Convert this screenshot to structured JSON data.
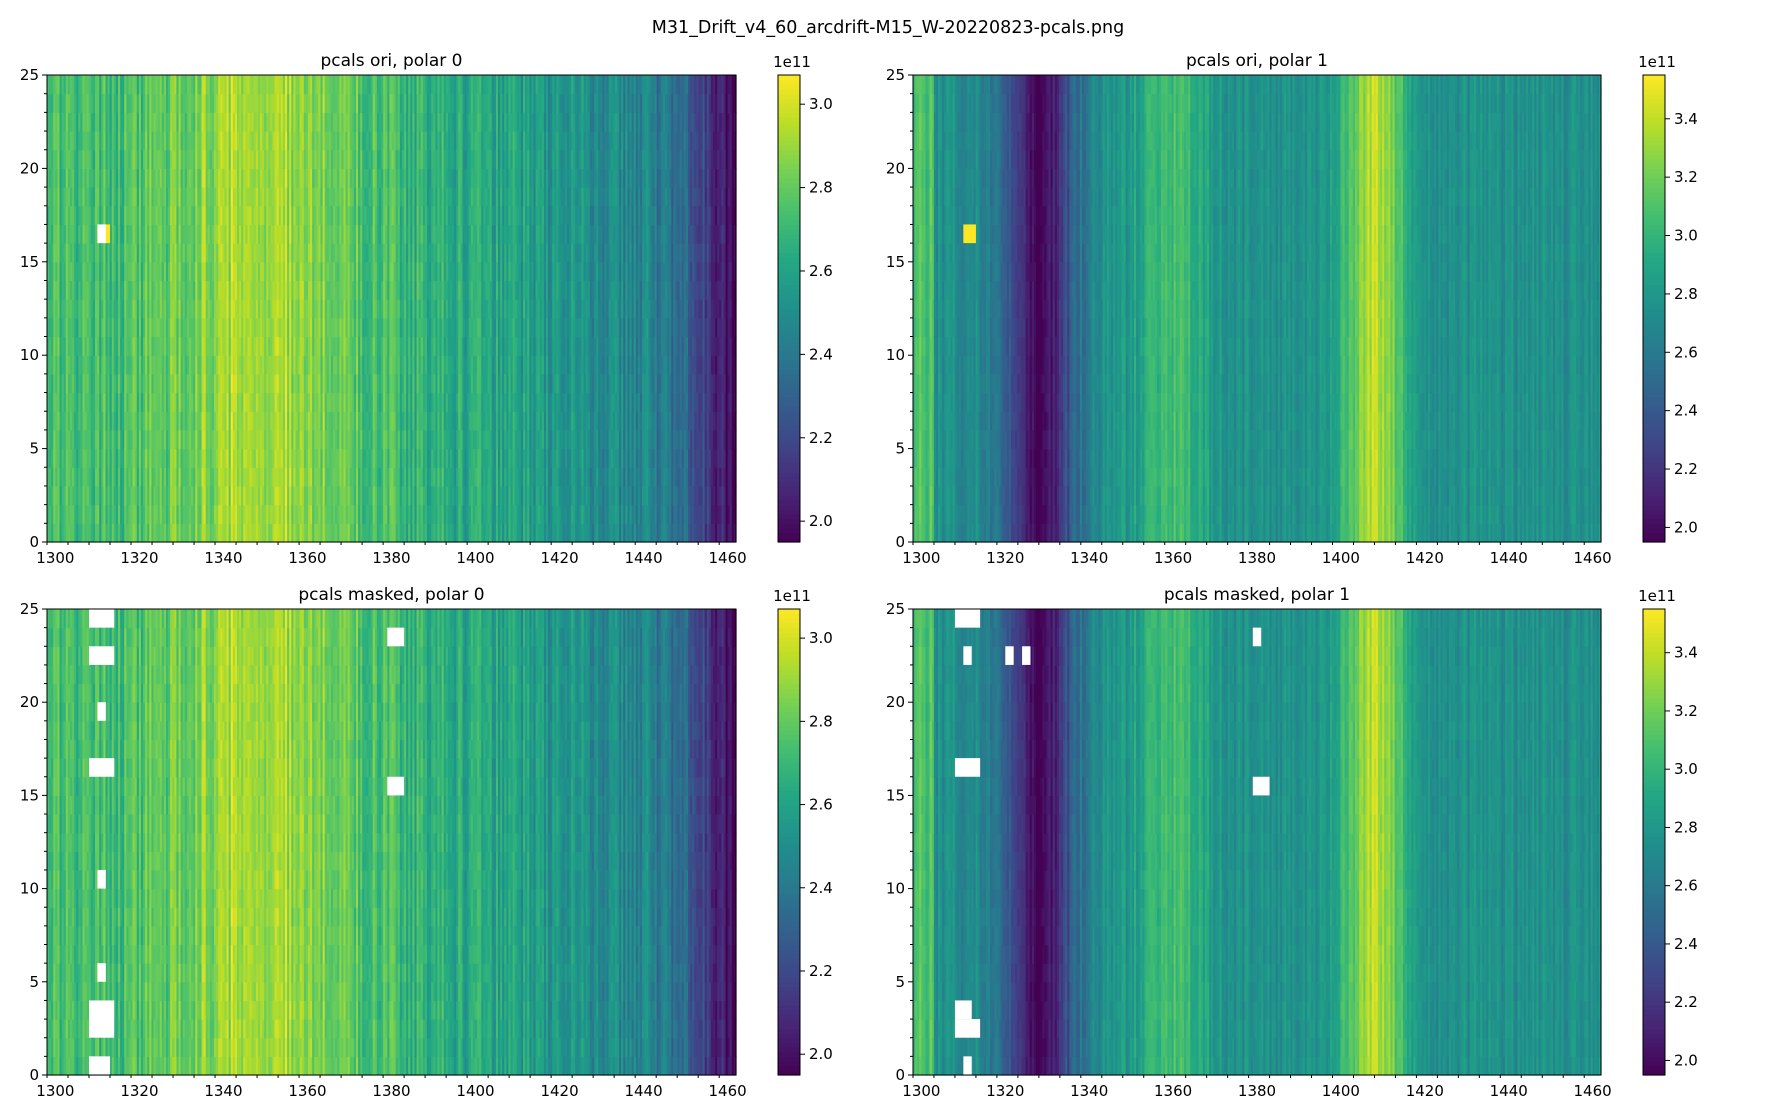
{
  "figure_title": "M31_Drift_v4_60_arcdrift-M15_W-20220823-pcals.png",
  "colors": {
    "mask": "#ffffff",
    "axis": "#000000",
    "colormap": "viridis"
  },
  "chart_data": [
    {
      "type": "heatmap",
      "title": "pcals ori, polar 0",
      "xlim": [
        1298,
        1462
      ],
      "ylim": [
        0,
        25
      ],
      "xticks": [
        "1300",
        "1320",
        "1340",
        "1360",
        "1380",
        "1400",
        "1420",
        "1440",
        "1460"
      ],
      "yticks": [
        "0",
        "5",
        "10",
        "15",
        "20",
        "25"
      ],
      "colorbar": {
        "offset_label": "1e11",
        "range": [
          1.95,
          3.07
        ],
        "ticks": [
          "2.0",
          "2.2",
          "2.4",
          "2.6",
          "2.8",
          "3.0"
        ]
      },
      "profile": "polar0",
      "masked_cells": [
        {
          "x": [
            1310,
            1312
          ],
          "y": [
            16,
            17
          ]
        }
      ],
      "highlight_cells": [
        {
          "x": [
            1310,
            1313
          ],
          "y": [
            16,
            17
          ],
          "value": 3.07
        }
      ]
    },
    {
      "type": "heatmap",
      "title": "pcals ori, polar 1",
      "xlim": [
        1298,
        1462
      ],
      "ylim": [
        0,
        25
      ],
      "xticks": [
        "1300",
        "1320",
        "1340",
        "1360",
        "1380",
        "1400",
        "1420",
        "1440",
        "1460"
      ],
      "yticks": [
        "0",
        "5",
        "10",
        "15",
        "20",
        "25"
      ],
      "colorbar": {
        "offset_label": "1e11",
        "range": [
          1.95,
          3.55
        ],
        "ticks": [
          "2.0",
          "2.2",
          "2.4",
          "2.6",
          "2.8",
          "3.0",
          "3.2",
          "3.4"
        ]
      },
      "profile": "polar1",
      "masked_cells": [],
      "highlight_cells": [
        {
          "x": [
            1310,
            1313
          ],
          "y": [
            16,
            17
          ],
          "value": 3.55
        }
      ]
    },
    {
      "type": "heatmap",
      "title": "pcals masked, polar 0",
      "xlim": [
        1298,
        1462
      ],
      "ylim": [
        0,
        25
      ],
      "xticks": [
        "1300",
        "1320",
        "1340",
        "1360",
        "1380",
        "1400",
        "1420",
        "1440",
        "1460"
      ],
      "yticks": [
        "0",
        "5",
        "10",
        "15",
        "20",
        "25"
      ],
      "colorbar": {
        "offset_label": "1e11",
        "range": [
          1.95,
          3.07
        ],
        "ticks": [
          "2.0",
          "2.2",
          "2.4",
          "2.6",
          "2.8",
          "3.0"
        ]
      },
      "profile": "polar0",
      "masked_cells": [
        {
          "x": [
            1308,
            1314
          ],
          "y": [
            24,
            25
          ]
        },
        {
          "x": [
            1308,
            1314
          ],
          "y": [
            22,
            23
          ]
        },
        {
          "x": [
            1310,
            1312
          ],
          "y": [
            19,
            20
          ]
        },
        {
          "x": [
            1308,
            1314
          ],
          "y": [
            16,
            17
          ]
        },
        {
          "x": [
            1310,
            1312
          ],
          "y": [
            10,
            11
          ]
        },
        {
          "x": [
            1310,
            1312
          ],
          "y": [
            5,
            6
          ]
        },
        {
          "x": [
            1308,
            1314
          ],
          "y": [
            2,
            4
          ]
        },
        {
          "x": [
            1308,
            1313
          ],
          "y": [
            0,
            1
          ]
        },
        {
          "x": [
            1379,
            1383
          ],
          "y": [
            23,
            24
          ]
        },
        {
          "x": [
            1379,
            1383
          ],
          "y": [
            15,
            16
          ]
        }
      ],
      "highlight_cells": []
    },
    {
      "type": "heatmap",
      "title": "pcals masked, polar 1",
      "xlim": [
        1298,
        1462
      ],
      "ylim": [
        0,
        25
      ],
      "xticks": [
        "1300",
        "1320",
        "1340",
        "1360",
        "1380",
        "1400",
        "1420",
        "1440",
        "1460"
      ],
      "yticks": [
        "0",
        "5",
        "10",
        "15",
        "20",
        "25"
      ],
      "colorbar": {
        "offset_label": "1e11",
        "range": [
          1.95,
          3.55
        ],
        "ticks": [
          "2.0",
          "2.2",
          "2.4",
          "2.6",
          "2.8",
          "3.0",
          "3.2",
          "3.4"
        ]
      },
      "profile": "polar1",
      "masked_cells": [
        {
          "x": [
            1308,
            1314
          ],
          "y": [
            24,
            25
          ]
        },
        {
          "x": [
            1310,
            1312
          ],
          "y": [
            22,
            23
          ]
        },
        {
          "x": [
            1320,
            1322
          ],
          "y": [
            22,
            23
          ]
        },
        {
          "x": [
            1324,
            1326
          ],
          "y": [
            22,
            23
          ]
        },
        {
          "x": [
            1379,
            1381
          ],
          "y": [
            23,
            24
          ]
        },
        {
          "x": [
            1308,
            1314
          ],
          "y": [
            16,
            17
          ]
        },
        {
          "x": [
            1379,
            1383
          ],
          "y": [
            15,
            16
          ]
        },
        {
          "x": [
            1308,
            1312
          ],
          "y": [
            3,
            4
          ]
        },
        {
          "x": [
            1308,
            1314
          ],
          "y": [
            2,
            3
          ]
        },
        {
          "x": [
            1310,
            1312
          ],
          "y": [
            0,
            1
          ]
        }
      ],
      "highlight_cells": []
    }
  ]
}
